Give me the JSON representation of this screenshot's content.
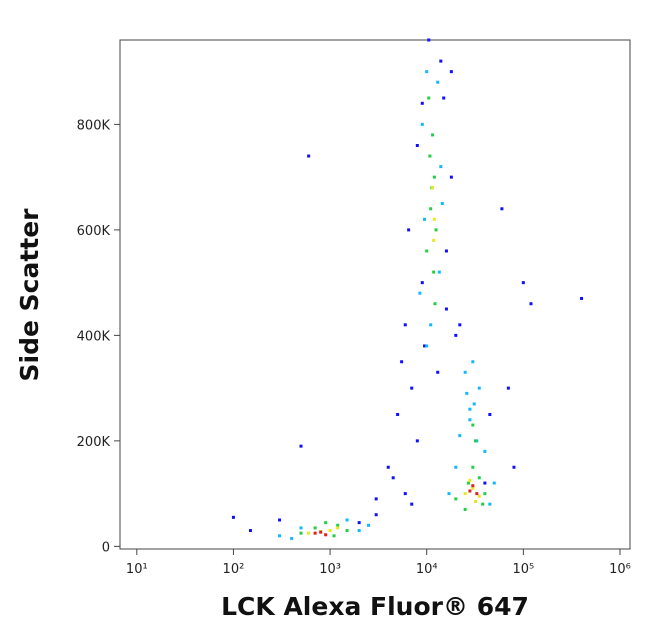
{
  "chart_data": {
    "type": "scatter",
    "x_label": "LCK Alexa Fluor® 647",
    "y_label": "Side Scatter",
    "x_log": true,
    "xlim": [
      6.7,
      1270000
    ],
    "ylim": [
      -5000,
      960000
    ],
    "xticks": [
      {
        "value": 10,
        "label": "10¹"
      },
      {
        "value": 100,
        "label": "10²"
      },
      {
        "value": 1000,
        "label": "10³"
      },
      {
        "value": 10000,
        "label": "10⁴"
      },
      {
        "value": 100000,
        "label": "10⁵"
      },
      {
        "value": 1000000,
        "label": "10⁶"
      }
    ],
    "yticks": [
      0,
      {
        "value": 200000,
        "label": "200K"
      },
      {
        "value": 400000,
        "label": "400K"
      },
      {
        "value": 600000,
        "label": "600K"
      },
      {
        "value": 800000,
        "label": "800K"
      }
    ],
    "series": [
      {
        "color": "#1010ff",
        "x": [
          100,
          150,
          300,
          500,
          2000,
          3000,
          4000,
          5000,
          6000,
          7000,
          8000,
          9000,
          15000,
          18000,
          40000,
          60000,
          70000,
          100000,
          120000,
          400000,
          600,
          6000,
          7000,
          5500,
          9500,
          14000,
          16000,
          20000,
          45000,
          80000,
          3000,
          4500,
          6500,
          8000,
          16000,
          18000,
          22000,
          9000,
          10500,
          13000
        ],
        "y": [
          55000,
          30000,
          50000,
          190000,
          45000,
          60000,
          150000,
          250000,
          420000,
          300000,
          200000,
          500000,
          850000,
          700000,
          120000,
          640000,
          300000,
          500000,
          460000,
          470000,
          740000,
          100000,
          80000,
          350000,
          380000,
          920000,
          450000,
          400000,
          250000,
          150000,
          90000,
          130000,
          600000,
          760000,
          560000,
          900000,
          420000,
          840000,
          960000,
          330000
        ]
      },
      {
        "color": "#10b8ff",
        "x": [
          9000,
          10000,
          13000,
          14000,
          9500,
          11000,
          13500,
          8500,
          10000,
          14500,
          17000,
          20000,
          45000,
          50000,
          22000,
          28000,
          35000,
          40000,
          400,
          500,
          1500,
          2000,
          2500,
          300,
          25000,
          30000,
          28000,
          33000,
          26000,
          31000
        ],
        "y": [
          800000,
          900000,
          880000,
          720000,
          620000,
          420000,
          520000,
          480000,
          380000,
          650000,
          100000,
          150000,
          80000,
          120000,
          210000,
          260000,
          300000,
          180000,
          15000,
          35000,
          50000,
          30000,
          40000,
          20000,
          330000,
          350000,
          240000,
          200000,
          290000,
          270000
        ]
      },
      {
        "color": "#20d040",
        "x": [
          10500,
          11500,
          12000,
          11000,
          12500,
          10000,
          11800,
          12200,
          10800,
          11300,
          20000,
          25000,
          35000,
          40000,
          30000,
          27000,
          38000,
          32000,
          500,
          700,
          1200,
          1500,
          900,
          1100,
          30000
        ],
        "y": [
          850000,
          780000,
          700000,
          640000,
          600000,
          560000,
          520000,
          460000,
          740000,
          680000,
          90000,
          70000,
          130000,
          100000,
          150000,
          120000,
          80000,
          200000,
          25000,
          35000,
          40000,
          30000,
          45000,
          20000,
          230000
        ]
      },
      {
        "color": "#e8e820",
        "x": [
          11500,
          12000,
          11800,
          25000,
          30000,
          35000,
          28000,
          32000,
          600,
          800,
          1000,
          1200
        ],
        "y": [
          680000,
          620000,
          580000,
          100000,
          110000,
          95000,
          125000,
          85000,
          25000,
          28000,
          30000,
          35000
        ]
      },
      {
        "color": "#e02020",
        "x": [
          700,
          800,
          900,
          28000,
          33000,
          30000
        ],
        "y": [
          25000,
          27000,
          22000,
          105000,
          100000,
          115000
        ]
      }
    ]
  }
}
